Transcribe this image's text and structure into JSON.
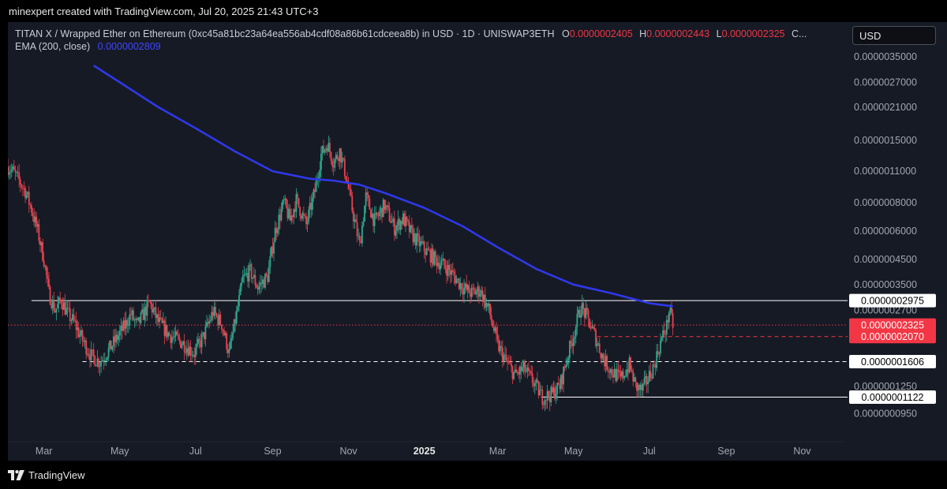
{
  "header": {
    "credit": "minexpert created with TradingView.com, Jul 20, 2025 21:43 UTC+3"
  },
  "legend": {
    "symbol": "TITAN X / Wrapped Ether on Ethereum (0xc45a81bc23a64ea556ab4cdf08a86b61cdceea8b) in USD · 1D · UNISWAP3ETH",
    "o_label": "O",
    "o_value": "0.0000002405",
    "h_label": "H",
    "h_value": "0.0000002443",
    "l_label": "L",
    "l_value": "0.0000002325",
    "c_label": "C...",
    "ema_label": "EMA (200, close)",
    "ema_value": "0.0000002809"
  },
  "currency_button": "USD",
  "footer": {
    "brand": "TradingView"
  },
  "colors": {
    "background": "#161a25",
    "up_candle": "#2fa88e",
    "down_candle": "#e8424e",
    "ema": "#2f38e8",
    "axis_text": "#a3a6af",
    "last_price_badge": "#f23645"
  },
  "chart_data": {
    "type": "candlestick",
    "scale": "log",
    "x_tick_labels": [
      "Mar",
      "May",
      "Jul",
      "Sep",
      "Nov",
      "2025",
      "Mar",
      "May",
      "Jul",
      "Sep",
      "Nov"
    ],
    "x_tick_dates": [
      "2024-03-01",
      "2024-05-01",
      "2024-07-01",
      "2024-09-01",
      "2024-11-01",
      "2025-01-01",
      "2025-03-01",
      "2025-05-01",
      "2025-07-01",
      "2025-09-01",
      "2025-11-01"
    ],
    "y_tick_labels": [
      "0.0000035000",
      "0.0000027000",
      "0.0000021000",
      "0.0000015000",
      "0.0000011000",
      "0.0000008000",
      "0.0000006000",
      "0.0000004500",
      "0.0000003500",
      "0.0000002700",
      "0.0000001250",
      "0.0000000950"
    ],
    "y_tick_values": [
      3.5e-06,
      2.7e-06,
      2.1e-06,
      1.5e-06,
      1.1e-06,
      8e-07,
      6e-07,
      4.5e-07,
      3.5e-07,
      2.7e-07,
      1.25e-07,
      9.5e-08
    ],
    "ylim": [
      8e-08,
      4.3e-06
    ],
    "xlim": [
      "2024-02-01",
      "2025-12-05"
    ],
    "price_badges": [
      {
        "label": "0.0000002975",
        "value": 2.975e-07,
        "style": "white"
      },
      {
        "label": "0.0000002325",
        "value": 2.325e-07,
        "style": "red"
      },
      {
        "label": "0.0000002070",
        "value": 2.07e-07,
        "style": "red"
      },
      {
        "label": "0.0000001606",
        "value": 1.606e-07,
        "style": "white"
      },
      {
        "label": "0.0000001122",
        "value": 1.122e-07,
        "style": "white"
      }
    ],
    "horizontal_lines": [
      {
        "value": 2.975e-07,
        "from": "2024-02-20",
        "style": "solid",
        "color": "#ffffff"
      },
      {
        "value": 2.325e-07,
        "from": "2024-02-01",
        "style": "dotted",
        "color": "#f23645"
      },
      {
        "value": 2.07e-07,
        "from": "2025-05-20",
        "style": "dashed",
        "color": "#f23645"
      },
      {
        "value": 1.606e-07,
        "from": "2024-04-01",
        "style": "dashed",
        "color": "#ffffff"
      },
      {
        "value": 1.122e-07,
        "from": "2025-04-05",
        "style": "solid",
        "color": "#ffffff"
      }
    ],
    "price_path": [
      [
        "2024-02-01",
        1.15e-06
      ],
      [
        "2024-02-05",
        1.1e-06
      ],
      [
        "2024-02-10",
        1e-06
      ],
      [
        "2024-02-15",
        9e-07
      ],
      [
        "2024-02-20",
        7.5e-07
      ],
      [
        "2024-02-25",
        6e-07
      ],
      [
        "2024-03-01",
        4.5e-07
      ],
      [
        "2024-03-05",
        3.2e-07
      ],
      [
        "2024-03-10",
        2.7e-07
      ],
      [
        "2024-03-15",
        3e-07
      ],
      [
        "2024-03-20",
        2.6e-07
      ],
      [
        "2024-03-25",
        2.4e-07
      ],
      [
        "2024-04-01",
        2e-07
      ],
      [
        "2024-04-08",
        1.7e-07
      ],
      [
        "2024-04-15",
        1.6e-07
      ],
      [
        "2024-04-25",
        1.9e-07
      ],
      [
        "2024-05-05",
        2.3e-07
      ],
      [
        "2024-05-10",
        2.6e-07
      ],
      [
        "2024-05-15",
        2.3e-07
      ],
      [
        "2024-05-20",
        2.6e-07
      ],
      [
        "2024-05-25",
        2.9e-07
      ],
      [
        "2024-06-01",
        2.4e-07
      ],
      [
        "2024-06-10",
        2.1e-07
      ],
      [
        "2024-06-20",
        1.95e-07
      ],
      [
        "2024-06-30",
        1.75e-07
      ],
      [
        "2024-07-07",
        2.05e-07
      ],
      [
        "2024-07-15",
        2.65e-07
      ],
      [
        "2024-07-22",
        2.35e-07
      ],
      [
        "2024-07-28",
        1.75e-07
      ],
      [
        "2024-08-03",
        2.6e-07
      ],
      [
        "2024-08-08",
        3.7e-07
      ],
      [
        "2024-08-14",
        4e-07
      ],
      [
        "2024-08-20",
        3.4e-07
      ],
      [
        "2024-08-28",
        3.8e-07
      ],
      [
        "2024-09-03",
        6e-07
      ],
      [
        "2024-09-10",
        8e-07
      ],
      [
        "2024-09-15",
        6.7e-07
      ],
      [
        "2024-09-20",
        8.2e-07
      ],
      [
        "2024-09-28",
        6.4e-07
      ],
      [
        "2024-10-05",
        9e-07
      ],
      [
        "2024-10-10",
        1.3e-06
      ],
      [
        "2024-10-15",
        1.45e-06
      ],
      [
        "2024-10-20",
        1.2e-06
      ],
      [
        "2024-10-25",
        1.35e-06
      ],
      [
        "2024-10-30",
        1.05e-06
      ],
      [
        "2024-11-05",
        7e-07
      ],
      [
        "2024-11-10",
        5.2e-07
      ],
      [
        "2024-11-15",
        8.5e-07
      ],
      [
        "2024-11-22",
        6.6e-07
      ],
      [
        "2024-11-30",
        7.8e-07
      ],
      [
        "2024-12-08",
        6.2e-07
      ],
      [
        "2024-12-15",
        6.8e-07
      ],
      [
        "2024-12-22",
        5.8e-07
      ],
      [
        "2025-01-01",
        5e-07
      ],
      [
        "2025-01-10",
        4.5e-07
      ],
      [
        "2025-01-18",
        4.2e-07
      ],
      [
        "2025-01-25",
        3.8e-07
      ],
      [
        "2025-02-01",
        3.4e-07
      ],
      [
        "2025-02-08",
        3.2e-07
      ],
      [
        "2025-02-15",
        3.3e-07
      ],
      [
        "2025-02-22",
        2.7e-07
      ],
      [
        "2025-03-01",
        1.9e-07
      ],
      [
        "2025-03-08",
        1.6e-07
      ],
      [
        "2025-03-15",
        1.4e-07
      ],
      [
        "2025-03-22",
        1.5e-07
      ],
      [
        "2025-03-30",
        1.3e-07
      ],
      [
        "2025-04-06",
        1.12e-07
      ],
      [
        "2025-04-13",
        1.15e-07
      ],
      [
        "2025-04-20",
        1.25e-07
      ],
      [
        "2025-04-25",
        1.6e-07
      ],
      [
        "2025-05-01",
        2.1e-07
      ],
      [
        "2025-05-07",
        2.8e-07
      ],
      [
        "2025-05-12",
        2.5e-07
      ],
      [
        "2025-05-18",
        2.1e-07
      ],
      [
        "2025-05-25",
        1.65e-07
      ],
      [
        "2025-06-01",
        1.45e-07
      ],
      [
        "2025-06-08",
        1.35e-07
      ],
      [
        "2025-06-15",
        1.55e-07
      ],
      [
        "2025-06-20",
        1.25e-07
      ],
      [
        "2025-06-25",
        1.2e-07
      ],
      [
        "2025-06-30",
        1.35e-07
      ],
      [
        "2025-07-05",
        1.55e-07
      ],
      [
        "2025-07-10",
        1.95e-07
      ],
      [
        "2025-07-15",
        2.3e-07
      ],
      [
        "2025-07-17",
        2.7e-07
      ],
      [
        "2025-07-20",
        2.325e-07
      ]
    ],
    "ema_200": [
      [
        "2024-04-10",
        3.2e-06
      ],
      [
        "2024-05-01",
        2.7e-06
      ],
      [
        "2024-06-01",
        2.1e-06
      ],
      [
        "2024-07-01",
        1.7e-06
      ],
      [
        "2024-08-01",
        1.35e-06
      ],
      [
        "2024-09-01",
        1.1e-06
      ],
      [
        "2024-10-01",
        1.02e-06
      ],
      [
        "2024-10-20",
        1e-06
      ],
      [
        "2024-11-10",
        9.6e-07
      ],
      [
        "2024-12-01",
        8.8e-07
      ],
      [
        "2025-01-01",
        7.6e-07
      ],
      [
        "2025-02-01",
        6.3e-07
      ],
      [
        "2025-03-01",
        5.1e-07
      ],
      [
        "2025-04-01",
        4.1e-07
      ],
      [
        "2025-05-01",
        3.5e-07
      ],
      [
        "2025-06-01",
        3.2e-07
      ],
      [
        "2025-07-01",
        2.9e-07
      ],
      [
        "2025-07-20",
        2.809e-07
      ]
    ]
  }
}
